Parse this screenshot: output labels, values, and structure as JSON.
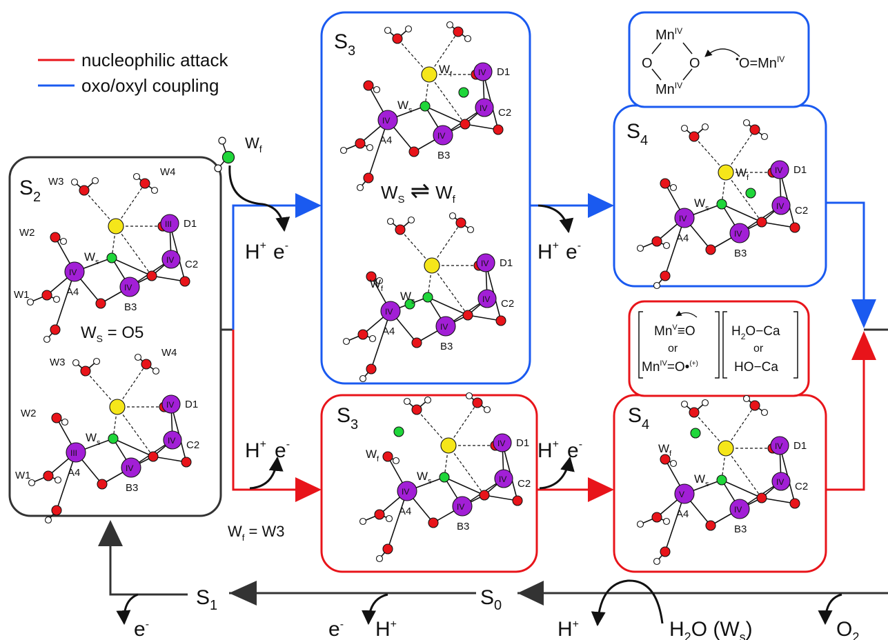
{
  "legend": {
    "red": {
      "label": "nucleophilic attack",
      "color": "#e8141a"
    },
    "blue": {
      "label": "oxo/oxyl coupling",
      "color": "#1a5af0"
    }
  },
  "colors": {
    "mn": "#a21fd6",
    "oxo": "#e8141a",
    "ca": "#f5e61a",
    "ws": "#1fd63a",
    "h": "#ffffff",
    "cycle": "#333333"
  },
  "s2": {
    "state": "S",
    "sub": "2",
    "top": {
      "w3": "W3",
      "w4": "W4",
      "w2": "W2",
      "w1": "W1",
      "d1": "D1",
      "c2": "C2",
      "a4": "A4",
      "b3": "B3",
      "ws": "W",
      "ws_sub": "s",
      "ox_d1": "III",
      "ox_c2": "IV",
      "ox_a4": "IV",
      "ox_b3": "IV"
    },
    "eq": "W",
    "eq_sub": "S",
    "eq_rest": " = O5",
    "bot": {
      "w3": "W3",
      "w4": "W4",
      "w2": "W2",
      "w1": "W1",
      "d1": "D1",
      "c2": "C2",
      "a4": "A4",
      "b3": "B3",
      "ws": "W",
      "ws_sub": "s",
      "ox_d1": "IV",
      "ox_c2": "IV",
      "ox_a4": "III",
      "ox_b3": "IV"
    }
  },
  "wf_mol": {
    "w": "W",
    "sub": "f"
  },
  "wf_eq": {
    "w": "W",
    "sub": "f",
    "rest": " = W3"
  },
  "step_upper_1": {
    "h": "H",
    "plus": "+",
    "e": "e",
    "minus": "-"
  },
  "step_lower_1": {
    "h": "H",
    "plus": "+",
    "e": "e",
    "minus": "-"
  },
  "s3_blue": {
    "state": "S",
    "sub": "3",
    "top": {
      "wf": "W",
      "wf_sub": "f",
      "ws": "W",
      "ws_sub": "s",
      "d1": "D1",
      "c2": "C2",
      "a4": "A4",
      "b3": "B3",
      "ox_d1": "IV",
      "ox_c2": "IV",
      "ox_a4": "IV",
      "ox_b3": "IV"
    },
    "eq_l": "W",
    "eq_l_sub": "S",
    "eq_arrow": "⇌",
    "eq_r": "W",
    "eq_r_sub": "f",
    "bot": {
      "ws": "W",
      "ws_sub": "s",
      "wf": "W",
      "wf_sub": "f",
      "d1": "D1",
      "c2": "C2",
      "a4": "A4",
      "b3": "B3",
      "ox_d1": "IV",
      "ox_c2": "IV",
      "ox_a4": "IV",
      "ox_b3": "IV"
    }
  },
  "s3_red": {
    "state": "S",
    "sub": "3",
    "wf": "W",
    "wf_sub": "f",
    "ws": "W",
    "ws_sub": "s",
    "d1": "D1",
    "c2": "C2",
    "a4": "A4",
    "b3": "B3",
    "ox_d1": "IV",
    "ox_c2": "IV",
    "ox_a4": "IV",
    "ox_b3": "IV"
  },
  "step_upper_2": {
    "h": "H",
    "plus": "+",
    "e": "e",
    "minus": "-"
  },
  "step_lower_2": {
    "h": "H",
    "plus": "+",
    "e": "e",
    "minus": "-"
  },
  "s4_blue": {
    "state": "S",
    "sub": "4",
    "wf": "W",
    "wf_sub": "f",
    "ws": "W",
    "ws_sub": "s",
    "d1": "D1",
    "c2": "C2",
    "a4": "A4",
    "b3": "B3",
    "ox_d1": "IV",
    "ox_c2": "IV",
    "ox_a4": "IV",
    "ox_b3": "IV"
  },
  "s4_red": {
    "state": "S",
    "sub": "4",
    "wf": "W",
    "wf_sub": "f",
    "ws": "W",
    "ws_sub": "s",
    "d1": "D1",
    "c2": "C2",
    "a4": "A4",
    "b3": "B3",
    "ox_d1": "IV",
    "ox_c2": "IV",
    "ox_a4": "V",
    "ox_b3": "IV"
  },
  "inset_blue": {
    "mn_top": "Mn",
    "mn_top_ox": "IV",
    "mn_bot": "Mn",
    "mn_bot_ox": "IV",
    "o_l": "O",
    "o_r": "O",
    "dot": "•",
    "oxyl": "O=Mn",
    "oxyl_ox": "IV"
  },
  "inset_red": {
    "l1": "Mn",
    "l1_ox": "V",
    "l1_rest": "≡O",
    "or": "or",
    "l3": "Mn",
    "l3_ox": "IV",
    "l3_rest": "=O•",
    "l3_sup": "(+)",
    "r1": "H",
    "r1_sub": "2",
    "r1_rest": "O−Ca",
    "r3": "HO−Ca"
  },
  "bottom": {
    "s1": "S",
    "s1_sub": "1",
    "s0": "S",
    "s0_sub": "0",
    "e_s1": "e",
    "e_s1_sup": "-",
    "e_s0": "e",
    "e_s0_sup": "-",
    "h_s0": "H",
    "h_s0_sup": "+",
    "h_w": "H",
    "h_w_sup": "+",
    "water": "H",
    "water_sub": "2",
    "water_rest": "O (W",
    "water_sub2": "s",
    "water_close": ")",
    "o2": "O",
    "o2_sub": "2"
  }
}
